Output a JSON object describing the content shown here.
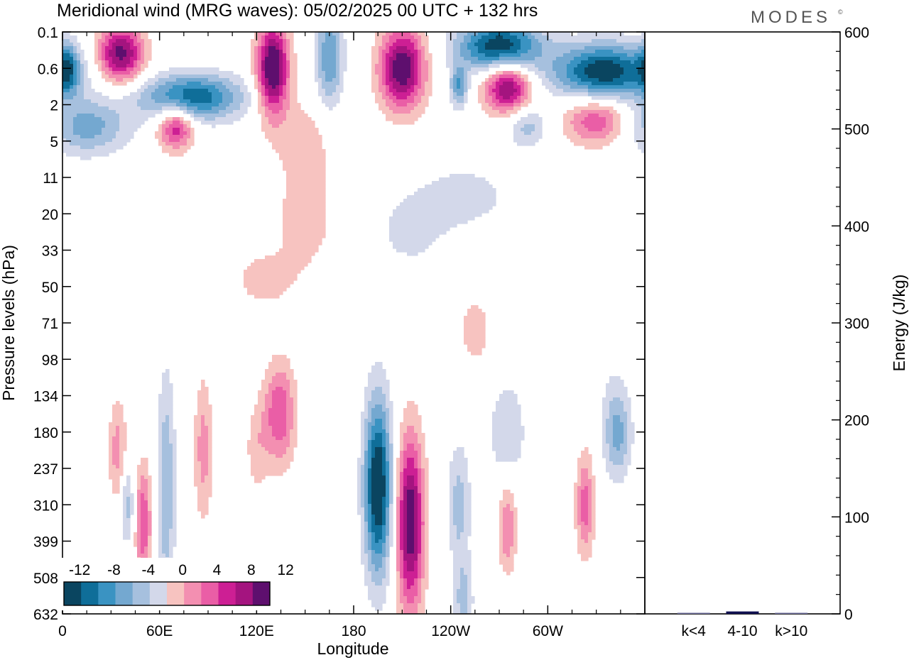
{
  "title": "Meridional wind (MRG waves):  05/02/2025  00 UTC  + 132 hrs",
  "logo": "MODES",
  "logo_mark": "©",
  "xlabel": "Longitude",
  "ylabel": "Pressure levels (hPa)",
  "y2label": "Energy (J/kg)",
  "colors": {
    "neg": [
      "#0a4560",
      "#0f6e99",
      "#3a93c2",
      "#74a8d0",
      "#a6c0de",
      "#d3d8ea"
    ],
    "pos": [
      "#f7c3c0",
      "#f38fb1",
      "#ea5ea6",
      "#cd1f94",
      "#a4147f",
      "#5e0f6e"
    ]
  },
  "chart_data": {
    "type": "heatmap",
    "x_ticks": [
      "0",
      "60E",
      "120E",
      "180",
      "120W",
      "60W"
    ],
    "x_tick_values": [
      0,
      60,
      120,
      180,
      240,
      300
    ],
    "xlim": [
      0,
      360
    ],
    "y_ticks": [
      "0.1",
      "0.6",
      "2",
      "5",
      "11",
      "20",
      "33",
      "50",
      "71",
      "98",
      "134",
      "180",
      "237",
      "310",
      "399",
      "508",
      "632"
    ],
    "colorbar": {
      "labels": [
        "-12",
        "-8",
        "-4",
        "0",
        "4",
        "8",
        "12"
      ],
      "levels": [
        -12,
        -10,
        -8,
        -6,
        -4,
        -2,
        0,
        2,
        4,
        6,
        8,
        10,
        12
      ]
    },
    "blobs": [
      {
        "lon": 195,
        "lev": 12.5,
        "sx": 6,
        "sy": 1.7,
        "amp": -15
      },
      {
        "lon": 215,
        "lev": 13.5,
        "sx": 6,
        "sy": 1.7,
        "amp": 14
      },
      {
        "lon": 64,
        "lev": 12.5,
        "sx": 4,
        "sy": 2.2,
        "amp": -6
      },
      {
        "lon": 50,
        "lev": 13.5,
        "sx": 3.5,
        "sy": 1.1,
        "amp": 8
      },
      {
        "lon": 40,
        "lev": 13,
        "sx": 3,
        "sy": 0.8,
        "amp": -5
      },
      {
        "lon": 34,
        "lev": 11.5,
        "sx": 4,
        "sy": 1,
        "amp": 5
      },
      {
        "lon": 87,
        "lev": 11.5,
        "sx": 4,
        "sy": 1.4,
        "amp": 5
      },
      {
        "lon": 134,
        "lev": 10.5,
        "sx": 7,
        "sy": 1,
        "amp": 8
      },
      {
        "lon": 120,
        "lev": 11.5,
        "sx": 5,
        "sy": 0.9,
        "amp": 3
      },
      {
        "lon": 245,
        "lev": 13,
        "sx": 5,
        "sy": 1.2,
        "amp": -5
      },
      {
        "lon": 275,
        "lev": 11,
        "sx": 8,
        "sy": 1,
        "amp": -4
      },
      {
        "lon": 275,
        "lev": 13.6,
        "sx": 4,
        "sy": 0.9,
        "amp": 6
      },
      {
        "lon": 323,
        "lev": 13,
        "sx": 4,
        "sy": 1,
        "amp": 7
      },
      {
        "lon": 343,
        "lev": 11,
        "sx": 6,
        "sy": 0.9,
        "amp": -7
      },
      {
        "lon": 248,
        "lev": 15.7,
        "sx": 4,
        "sy": 0.8,
        "amp": -5
      },
      {
        "lon": 325,
        "lev": 8.5,
        "sx": 5,
        "sy": 0.9,
        "amp": 2.5
      },
      {
        "lon": 150,
        "lev": 5.2,
        "sx": 12,
        "sy": 0.9,
        "amp": 3.5
      },
      {
        "lon": 125,
        "lev": 6.8,
        "sx": 15,
        "sy": 0.6,
        "amp": 3
      },
      {
        "lon": 255,
        "lev": 8.2,
        "sx": 6,
        "sy": 0.6,
        "amp": 4
      },
      {
        "lon": 215,
        "lev": 5.5,
        "sx": 20,
        "sy": 0.9,
        "amp": -2.5
      },
      {
        "lon": 250,
        "lev": 4.5,
        "sx": 20,
        "sy": 0.6,
        "amp": -3
      },
      {
        "lon": 330,
        "lev": 8,
        "sx": 8,
        "sy": 1.2,
        "amp": -2.5
      },
      {
        "lon": 36,
        "lev": 0.6,
        "sx": 10,
        "sy": 0.55,
        "amp": 13
      },
      {
        "lon": 130,
        "lev": 1,
        "sx": 7,
        "sy": 0.9,
        "amp": 15
      },
      {
        "lon": 165,
        "lev": 0.7,
        "sx": 6,
        "sy": 1,
        "amp": -8
      },
      {
        "lon": 210,
        "lev": 1,
        "sx": 10,
        "sy": 0.8,
        "amp": 14
      },
      {
        "lon": 270,
        "lev": 0.4,
        "sx": 18,
        "sy": 0.5,
        "amp": -14
      },
      {
        "lon": 275,
        "lev": 1.5,
        "sx": 10,
        "sy": 0.5,
        "amp": 13
      },
      {
        "lon": 245,
        "lev": 1.5,
        "sx": 4,
        "sy": 0.4,
        "amp": -8
      },
      {
        "lon": 335,
        "lev": 1.1,
        "sx": 22,
        "sy": 0.55,
        "amp": -14
      },
      {
        "lon": 80,
        "lev": 1.8,
        "sx": 22,
        "sy": 0.45,
        "amp": -12
      },
      {
        "lon": 15,
        "lev": 2.6,
        "sx": 18,
        "sy": 0.55,
        "amp": -7
      },
      {
        "lon": 3,
        "lev": 1,
        "sx": 5,
        "sy": 0.5,
        "amp": -8
      },
      {
        "lon": 70,
        "lev": 2.6,
        "sx": 8,
        "sy": 0.45,
        "amp": 10
      },
      {
        "lon": 330,
        "lev": 2.4,
        "sx": 14,
        "sy": 0.5,
        "amp": 8
      },
      {
        "lon": 287,
        "lev": 2.6,
        "sx": 8,
        "sy": 0.4,
        "amp": -5
      },
      {
        "lon": 150,
        "lev": 3,
        "sx": 14,
        "sy": 0.9,
        "amp": 3
      }
    ],
    "energy_panel": {
      "ylim": [
        0,
        600
      ],
      "y_ticks": [
        0,
        100,
        200,
        300,
        400,
        500,
        600
      ],
      "categories": [
        "k<4",
        "4-10",
        "k>10"
      ],
      "values": [
        0.3,
        2.5,
        0.3
      ],
      "bar_colors": [
        "#6b6b9a",
        "#101050",
        "#6b6b9a"
      ]
    }
  }
}
